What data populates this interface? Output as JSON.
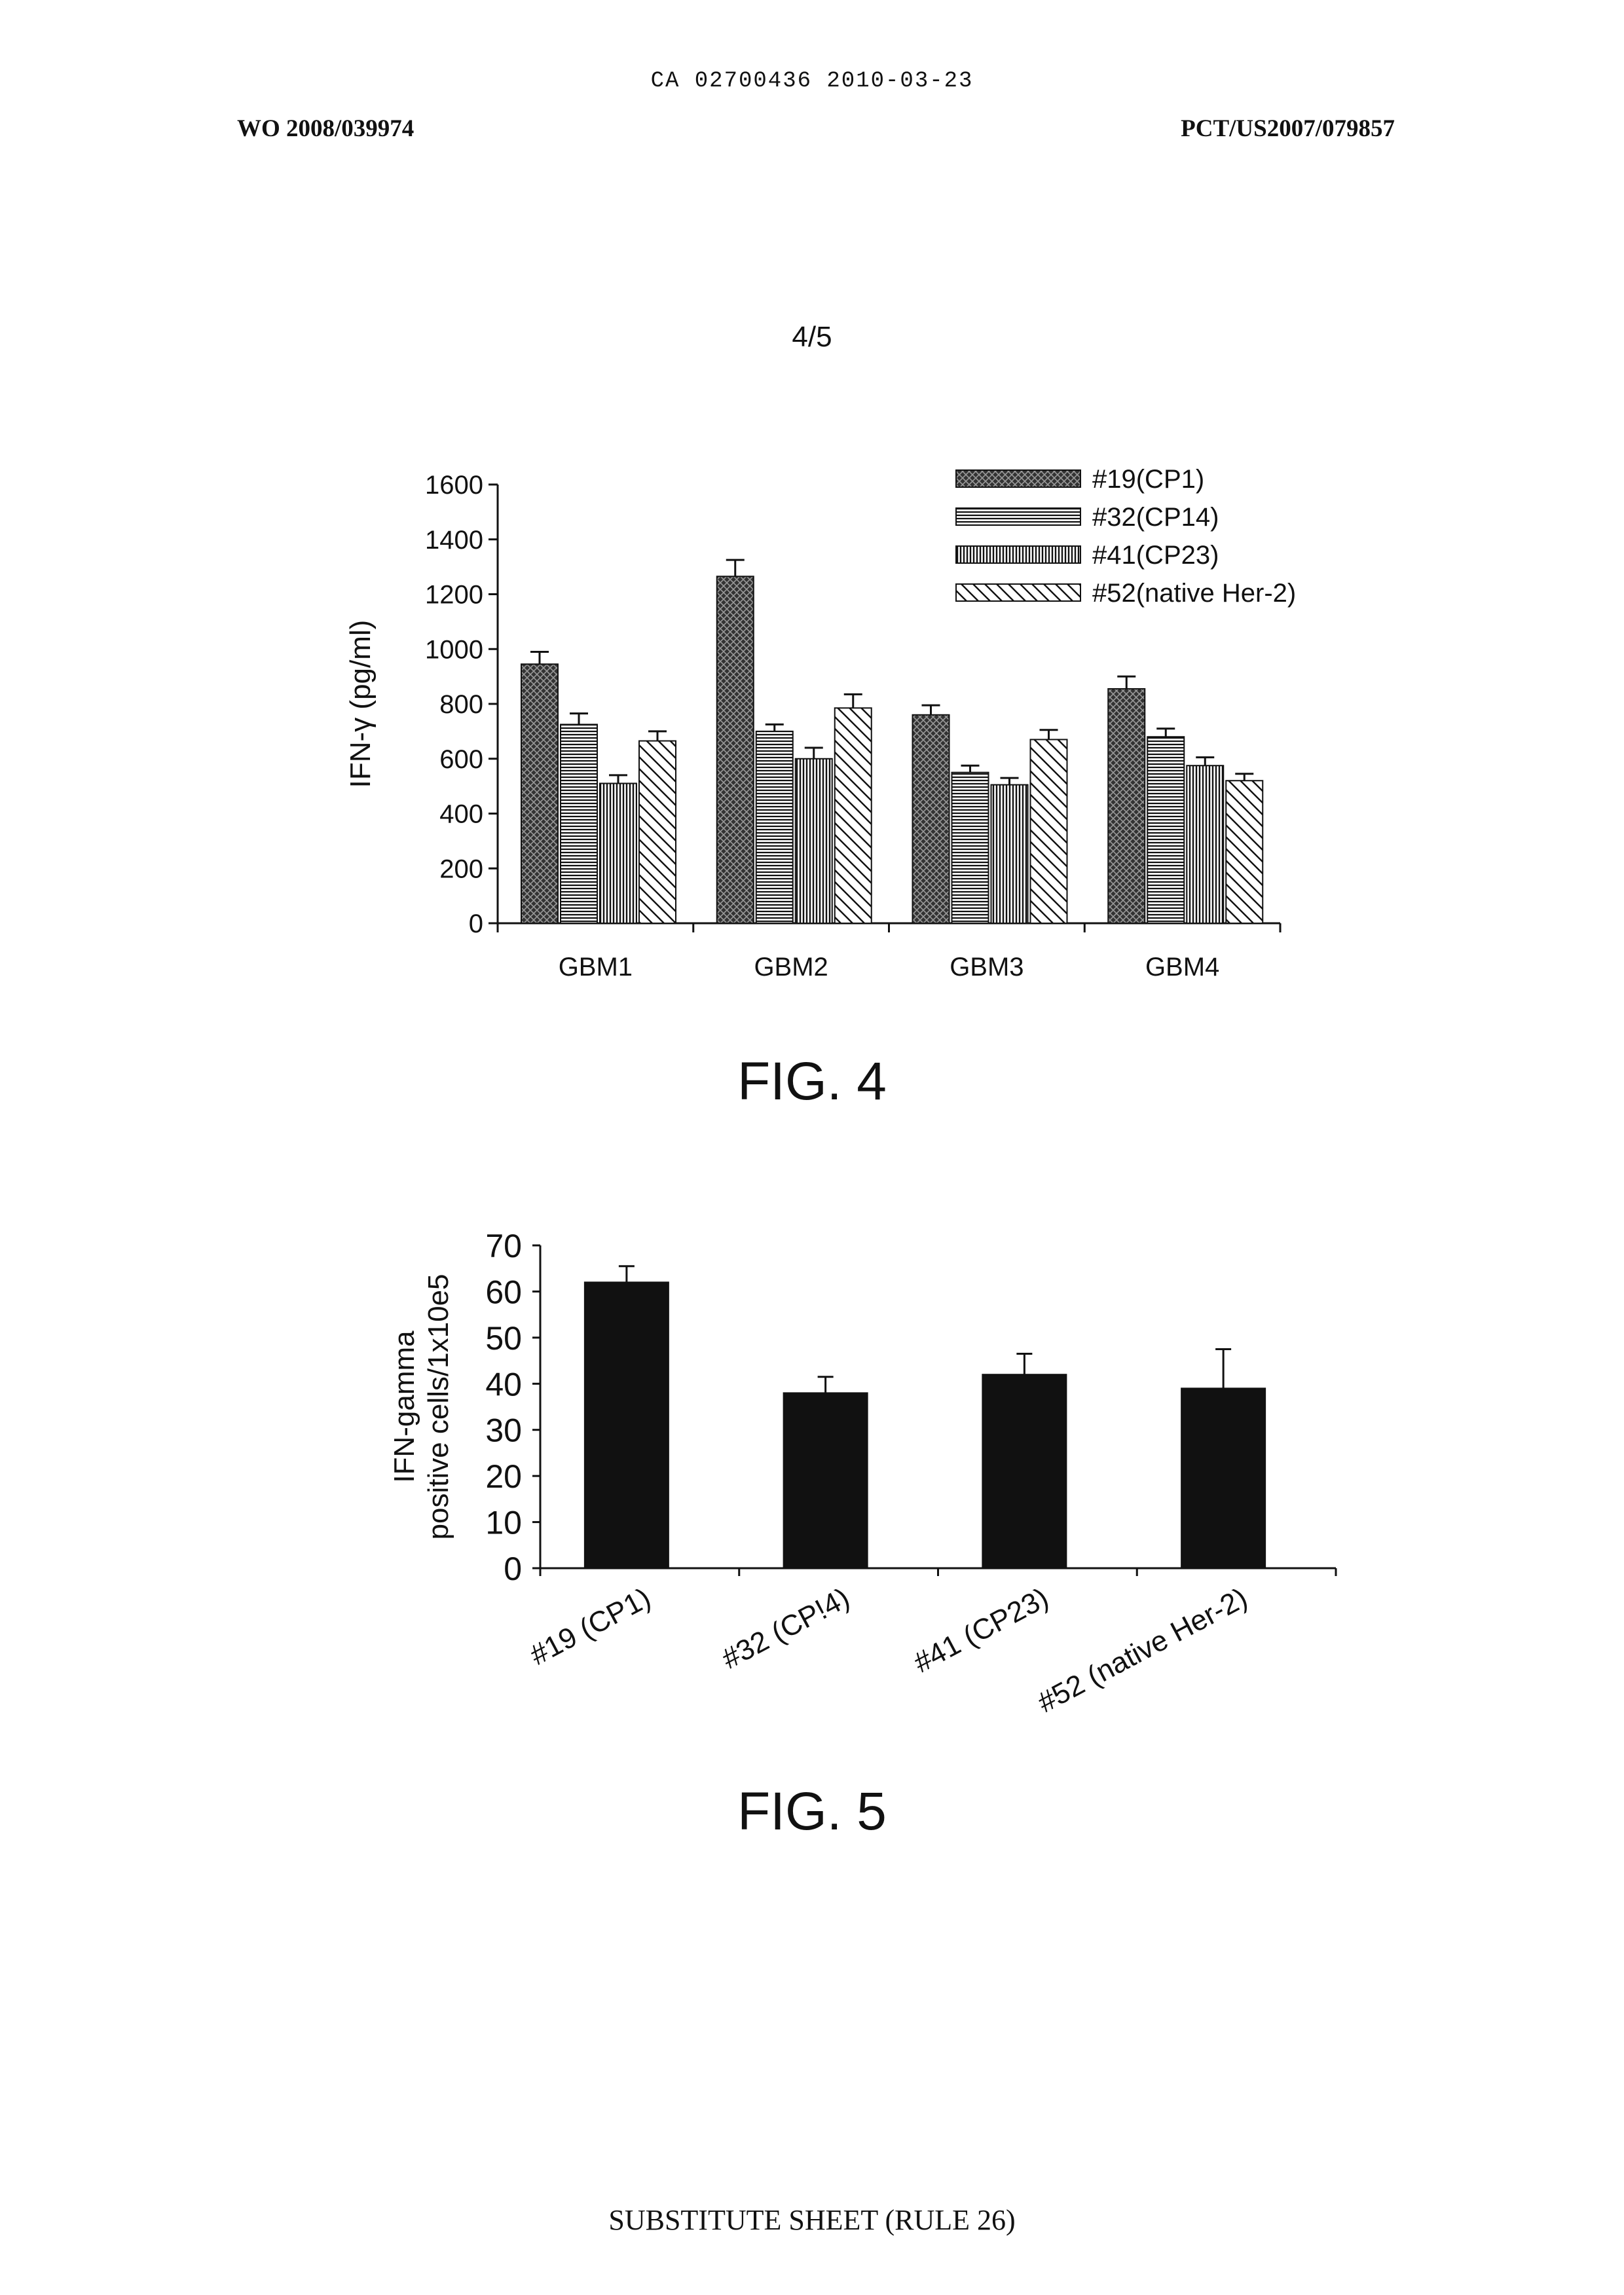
{
  "header": {
    "top_center": "CA 02700436 2010-03-23",
    "left": "WO 2008/039974",
    "right": "PCT/US2007/079857"
  },
  "page_number": "4/5",
  "footer": "SUBSTITUTE SHEET (RULE 26)",
  "chart_data": [
    {
      "type": "bar",
      "caption": "FIG. 4",
      "ylabel": "IFN-γ (pg/ml)",
      "ylim": [
        0,
        1600
      ],
      "yticks": [
        0,
        200,
        400,
        600,
        800,
        1000,
        1200,
        1400,
        1600
      ],
      "categories": [
        "GBM1",
        "GBM2",
        "GBM3",
        "GBM4"
      ],
      "legend_position": "top-right",
      "series": [
        {
          "name": "#19(CP1)",
          "pattern": "crosshatch-dark",
          "values": [
            945,
            1265,
            760,
            855
          ],
          "errors": [
            45,
            60,
            35,
            45
          ]
        },
        {
          "name": "#32(CP14)",
          "pattern": "horizontal-lines",
          "values": [
            725,
            700,
            550,
            680
          ],
          "errors": [
            40,
            25,
            25,
            30
          ]
        },
        {
          "name": "#41(CP23)",
          "pattern": "vertical-lines",
          "values": [
            510,
            600,
            505,
            575
          ],
          "errors": [
            30,
            40,
            25,
            30
          ]
        },
        {
          "name": "#52(native Her-2)",
          "pattern": "diagonal-lines",
          "values": [
            665,
            785,
            670,
            520
          ],
          "errors": [
            35,
            50,
            35,
            25
          ]
        }
      ]
    },
    {
      "type": "bar",
      "caption": "FIG. 5",
      "ylabel": [
        "IFN-gamma",
        "positive cells/1x10e5"
      ],
      "ylim": [
        0,
        70
      ],
      "yticks": [
        0,
        10,
        20,
        30,
        40,
        50,
        60,
        70
      ],
      "categories": [
        "#19 (CP1)",
        "#32 (CP!4)",
        "#41 (CP23)",
        "#52 (native Her-2)"
      ],
      "values": [
        62,
        38,
        42,
        39
      ],
      "errors": [
        3.5,
        3.5,
        4.5,
        8.5
      ],
      "bar_color": "#111111"
    }
  ]
}
